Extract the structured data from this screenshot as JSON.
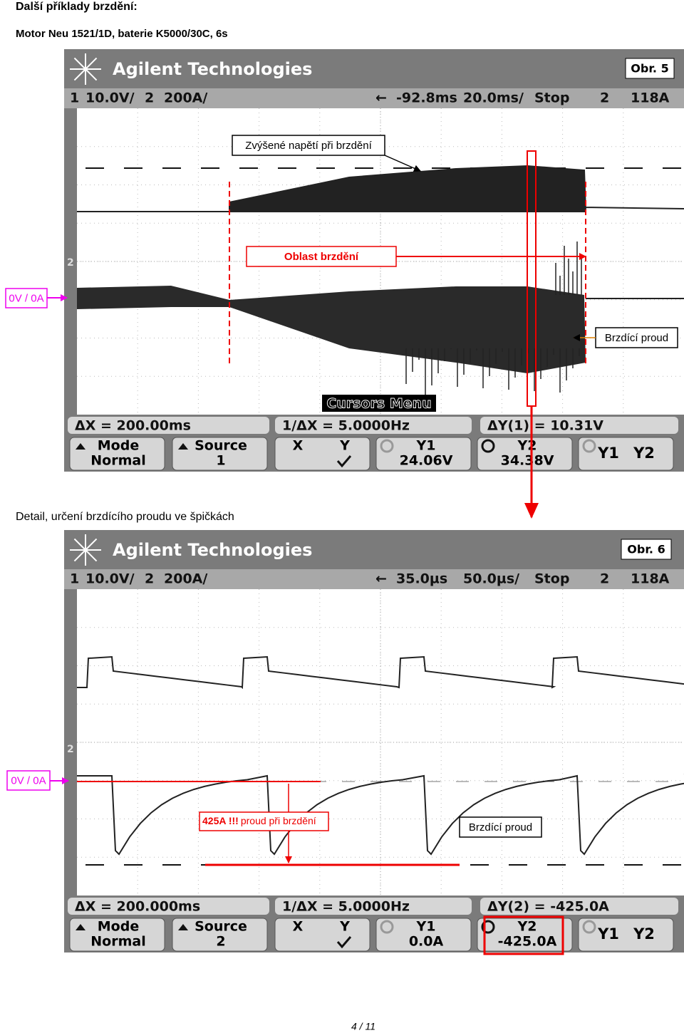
{
  "title": "Další příklady brzdění:",
  "subtitle": "Motor Neu 1521/1D, baterie K5000/30C, 6s",
  "figures": [
    {
      "brand": "Agilent Technologies",
      "label": "Obr. 5",
      "status": [
        "1",
        "10.0V/",
        "2",
        "200A/",
        "←",
        "-92.8ms",
        "20.0ms/",
        "Stop",
        "2",
        "118A"
      ],
      "annotations": [
        "Zvýšené napětí při brzdění",
        "Oblast brzdění",
        "0V / 0A",
        "Brzdící proud"
      ],
      "menu_title": "Cursors Menu",
      "readouts": [
        "ΔX = 200.00ms",
        "1/ΔX = 5.0000Hz",
        "ΔY(1) = 10.31V"
      ],
      "softkeys": [
        [
          "Mode",
          "Normal"
        ],
        [
          "Source",
          "1"
        ],
        [
          "X",
          "Y"
        ],
        [
          "Y1",
          "24.06V"
        ],
        [
          "Y2",
          "34.38V"
        ],
        [
          "Y1",
          "Y2"
        ]
      ]
    },
    {
      "brand": "Agilent Technologies",
      "label": "Obr. 6",
      "status": [
        "1",
        "10.0V/",
        "2",
        "200A/",
        "←",
        "35.0µs",
        "50.0µs/",
        "Stop",
        "2",
        "118A"
      ],
      "annotations": [
        "0V / 0A",
        "425A !!!",
        "proud při brzdění",
        "Brzdící proud"
      ],
      "readouts": [
        "ΔX = 200.000ms",
        "1/ΔX = 5.0000Hz",
        "ΔY(2) = -425.0A"
      ],
      "softkeys": [
        [
          "Mode",
          "Normal"
        ],
        [
          "Source",
          "2"
        ],
        [
          "X",
          "Y"
        ],
        [
          "Y1",
          "0.0A"
        ],
        [
          "Y2",
          "-425.0A"
        ],
        [
          "Y1",
          "Y2"
        ]
      ]
    }
  ],
  "caption": "Detail, určení brzdícího proudu ve špičkách",
  "footer": "4 / 11"
}
